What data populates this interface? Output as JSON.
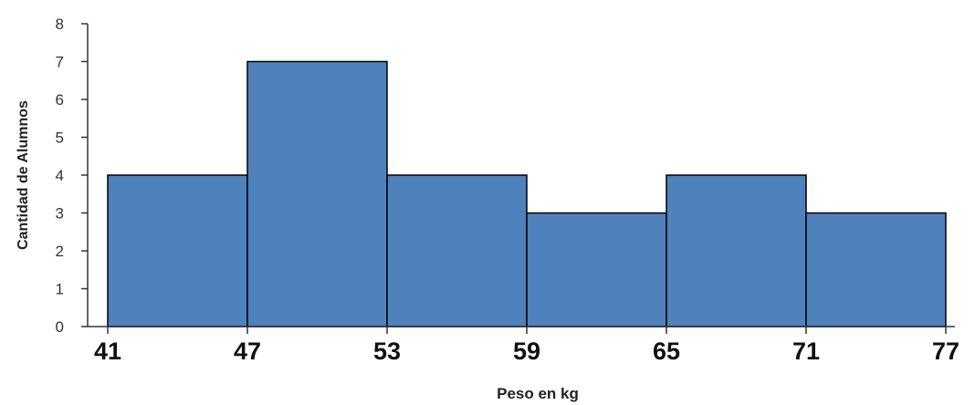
{
  "chart_data": {
    "type": "bar",
    "bins": [
      {
        "start": 41,
        "end": 47,
        "value": 4
      },
      {
        "start": 47,
        "end": 53,
        "value": 7
      },
      {
        "start": 53,
        "end": 59,
        "value": 4
      },
      {
        "start": 59,
        "end": 65,
        "value": 3
      },
      {
        "start": 65,
        "end": 71,
        "value": 4
      },
      {
        "start": 71,
        "end": 77,
        "value": 3
      }
    ],
    "x_ticks": [
      "41",
      "47",
      "53",
      "59",
      "65",
      "71",
      "77"
    ],
    "y_ticks": [
      "0",
      "1",
      "2",
      "3",
      "4",
      "5",
      "6",
      "7",
      "8"
    ],
    "xlabel": "Peso en kg",
    "ylabel": "Cantidad de Alumnos",
    "ylim": [
      0,
      8
    ],
    "xlim": [
      41,
      77
    ],
    "grid": false,
    "bar_color": "#4f81bd",
    "bar_edge_color": "#000000"
  }
}
